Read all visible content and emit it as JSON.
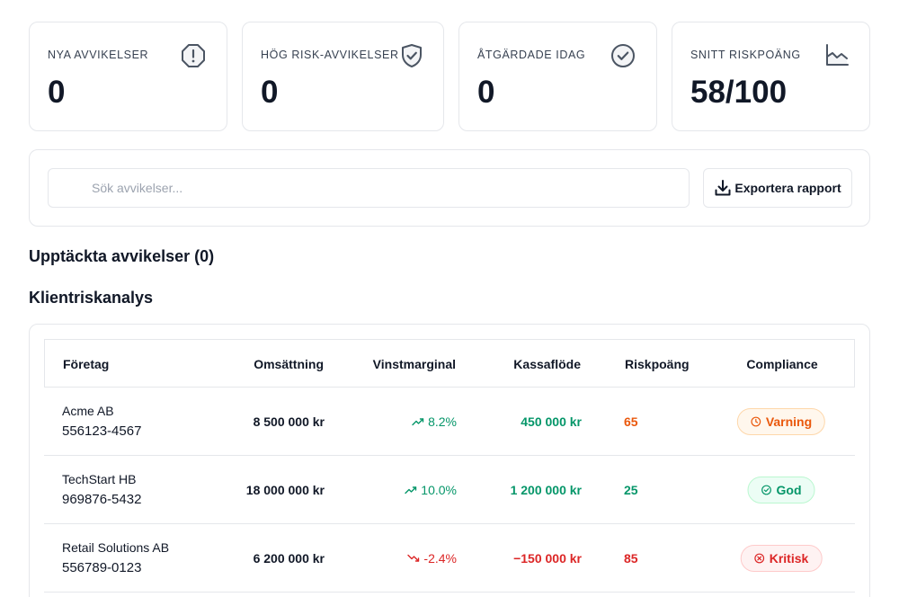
{
  "stats": [
    {
      "label": "NYA AVVIKELSER",
      "value": "0",
      "icon": "alert-octagon-icon"
    },
    {
      "label": "HÖG RISK-AVVIKELSER",
      "value": "0",
      "icon": "shield-check-icon"
    },
    {
      "label": "ÅTGÄRDADE IDAG",
      "value": "0",
      "icon": "check-circle-icon"
    },
    {
      "label": "SNITT RISKPOÄNG",
      "value": "58/100",
      "icon": "line-chart-icon"
    }
  ],
  "search": {
    "placeholder": "Sök avvikelser...",
    "value": ""
  },
  "export": {
    "label": "Exportera rapport"
  },
  "deviations": {
    "title": "Upptäckta avvikelser (0)"
  },
  "analysis": {
    "title": "Klientriskanalys",
    "columns": [
      "Företag",
      "Omsättning",
      "Vinstmarginal",
      "Kassaflöde",
      "Riskpoäng",
      "Compliance"
    ],
    "rows": [
      {
        "name": "Acme AB",
        "org": "556123-4567",
        "revenue": "8 500 000 kr",
        "margin": "8.2%",
        "trend": "up",
        "cashflow": "450 000 kr",
        "risk": "65",
        "compliance": "Varning",
        "status": "warning"
      },
      {
        "name": "TechStart HB",
        "org": "969876-5432",
        "revenue": "18 000 000 kr",
        "margin": "10.0%",
        "trend": "up",
        "cashflow": "1 200 000 kr",
        "risk": "25",
        "compliance": "God",
        "status": "good"
      },
      {
        "name": "Retail Solutions AB",
        "org": "556789-0123",
        "revenue": "6 200 000 kr",
        "margin": "-2.4%",
        "trend": "down",
        "cashflow": "−150 000 kr",
        "risk": "85",
        "compliance": "Kritisk",
        "status": "critical"
      }
    ]
  },
  "colors": {
    "positive": "#059669",
    "negative": "#dc2626",
    "warning": "#ea580c",
    "border": "#e5e7eb",
    "text": "#111827"
  }
}
